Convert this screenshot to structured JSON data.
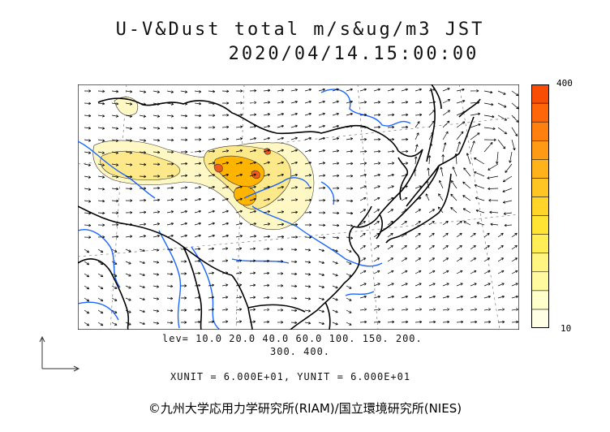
{
  "title": {
    "line1": "U-V&Dust total m/s&ug/m3 JST",
    "line2": "2020/04/14.15:00:00"
  },
  "colorbar": {
    "max_label": "400",
    "min_label": "10",
    "colors": [
      "#ffffe6",
      "#ffffcc",
      "#fffaa0",
      "#fff580",
      "#ffee55",
      "#ffe433",
      "#ffd52a",
      "#ffc522",
      "#ffb31a",
      "#ff9a14",
      "#ff800f",
      "#ff660a",
      "#f74d05"
    ]
  },
  "levels": {
    "line1": "lev= 10.0 20.0 40.0 60.0 100. 150. 200.",
    "line2": "300. 400."
  },
  "units": "XUNIT = 6.000E+01, YUNIT = 6.000E+01",
  "copyright": "©九州大学応用力学研究所(RIAM)/国立環境研究所(NIES)",
  "map_colors": {
    "coast": "#000000",
    "river": "#1a66ff",
    "dust_light": "#fff8c4",
    "dust_mid": "#fde88a",
    "dust_high": "#ffb400",
    "dust_peak": "#f25a1c"
  }
}
